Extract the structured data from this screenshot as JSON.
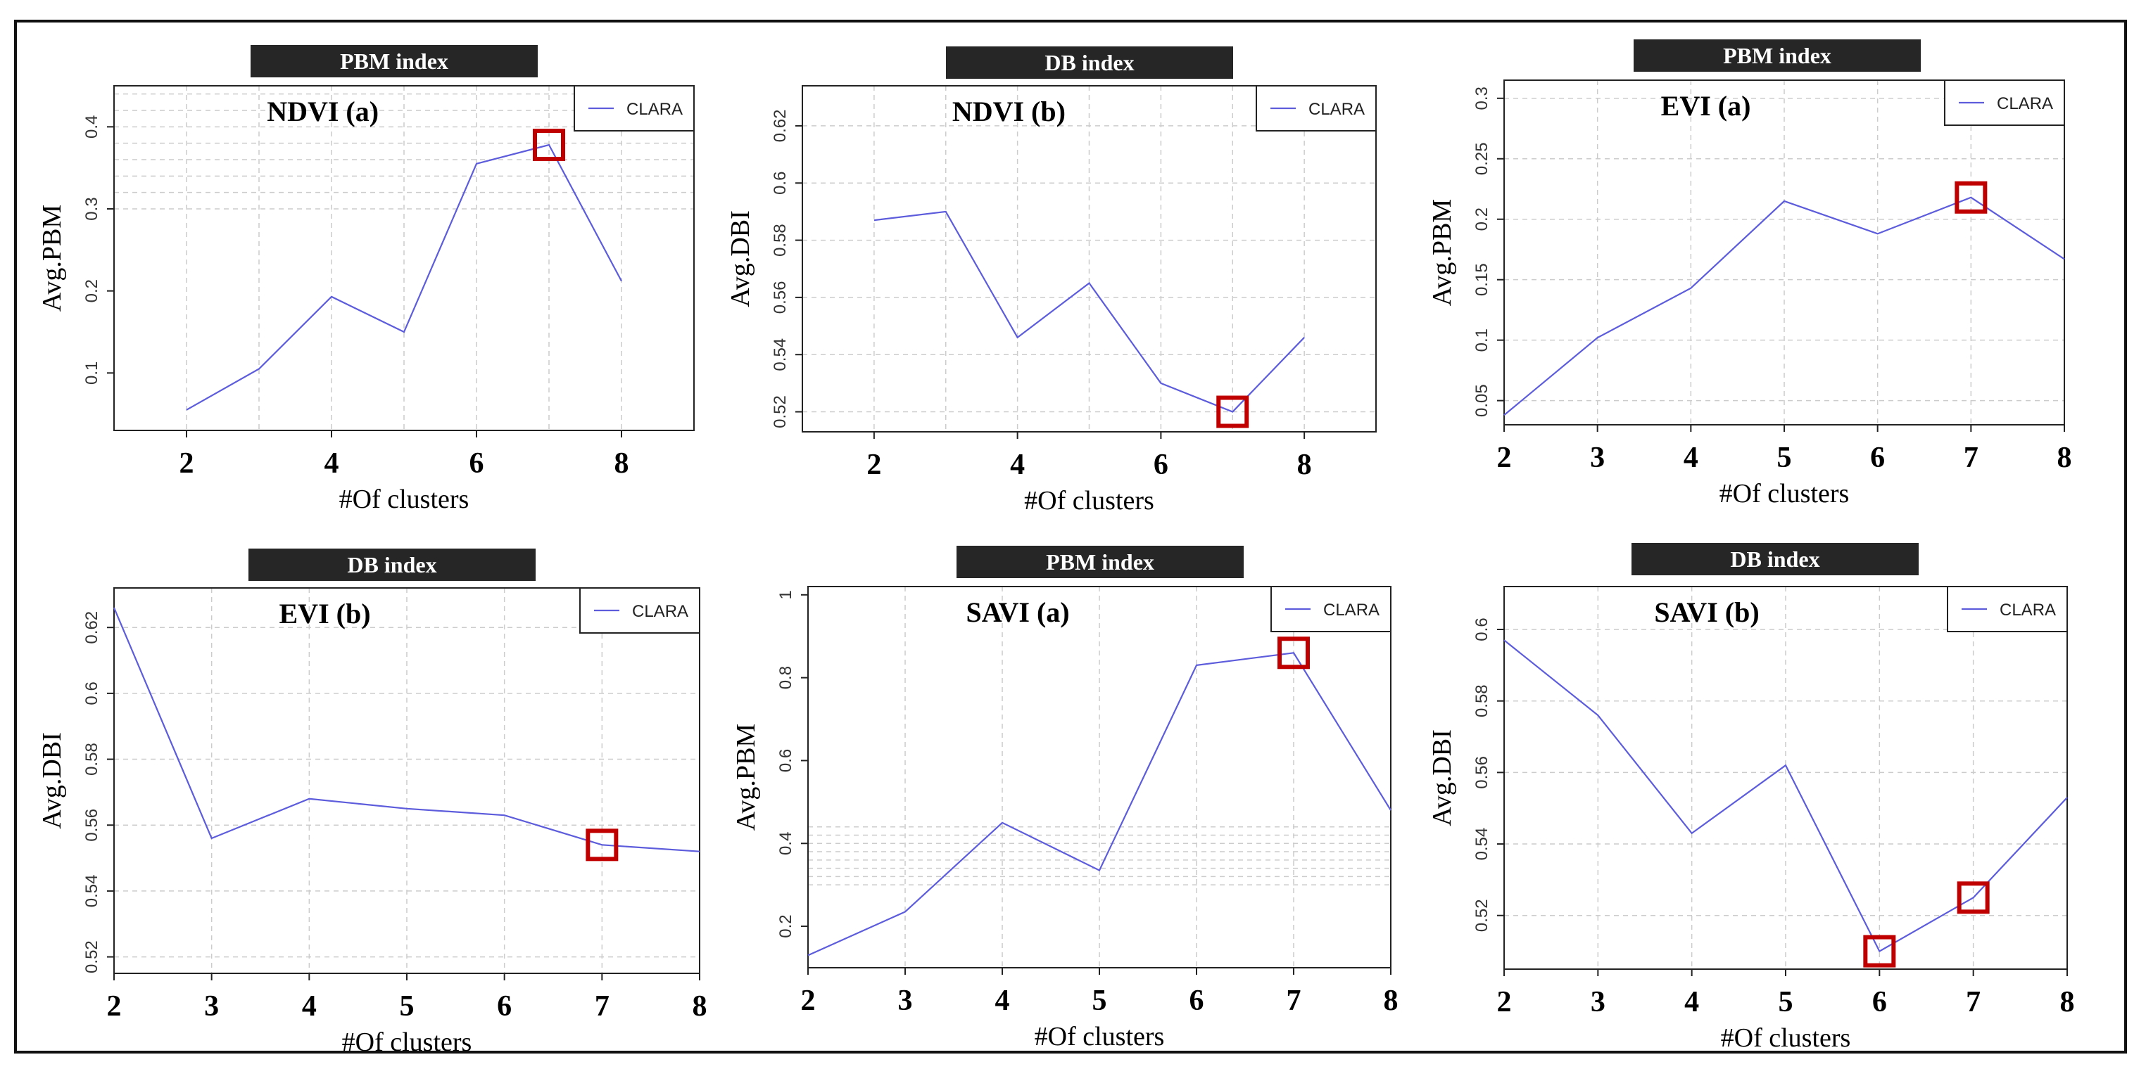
{
  "colors": {
    "line": "#5c5cdc",
    "marker": "#c00000",
    "header_bg": "#262626",
    "grid": "#cccccc"
  },
  "chart_data": [
    {
      "id": "p1",
      "type": "line",
      "header": "PBM index",
      "title": "NDVI (a)",
      "xlabel": "#Of clusters",
      "ylabel": "Avg.PBM",
      "xlim": [
        1,
        9
      ],
      "ylim": [
        0.03,
        0.45
      ],
      "xticks": [
        2,
        4,
        6,
        8
      ],
      "yticks": [
        0.1,
        0.2,
        0.3,
        0.4
      ],
      "x_grid": [
        1,
        2,
        3,
        4,
        5,
        6,
        7,
        8,
        9
      ],
      "y_grid": [
        0.3,
        0.32,
        0.34,
        0.36,
        0.38,
        0.4,
        0.42,
        0.44
      ],
      "series": [
        {
          "name": "CLARA",
          "x": [
            2,
            3,
            4,
            5,
            6,
            7,
            8
          ],
          "values": [
            0.055,
            0.105,
            0.193,
            0.15,
            0.355,
            0.378,
            0.212
          ]
        }
      ],
      "legend": "CLARA",
      "highlight_x": [
        7
      ]
    },
    {
      "id": "p2",
      "type": "line",
      "header": "DB index",
      "title": "NDVI (b)",
      "xlabel": "#Of clusters",
      "ylabel": "Avg.DBI",
      "xlim": [
        1,
        9
      ],
      "ylim": [
        0.513,
        0.634
      ],
      "xticks": [
        2,
        4,
        6,
        8
      ],
      "yticks": [
        0.52,
        0.54,
        0.56,
        0.58,
        0.6,
        0.62
      ],
      "x_grid": [
        1,
        2,
        3,
        4,
        5,
        6,
        7,
        8,
        9
      ],
      "y_grid": [
        0.52,
        0.54,
        0.56,
        0.58,
        0.6,
        0.62
      ],
      "series": [
        {
          "name": "CLARA",
          "x": [
            2,
            3,
            4,
            5,
            6,
            7,
            8
          ],
          "values": [
            0.587,
            0.59,
            0.546,
            0.565,
            0.53,
            0.52,
            0.546
          ]
        }
      ],
      "legend": "CLARA",
      "highlight_x": [
        7
      ]
    },
    {
      "id": "p3",
      "type": "line",
      "header": "PBM index",
      "title": "EVI (a)",
      "xlabel": "#Of clusters",
      "ylabel": "Avg.PBM",
      "xlim": [
        2,
        8
      ],
      "ylim": [
        0.03,
        0.315
      ],
      "xticks": [
        2,
        3,
        4,
        5,
        6,
        7,
        8
      ],
      "yticks": [
        0.05,
        0.1,
        0.15,
        0.2,
        0.25,
        0.3
      ],
      "x_grid": [
        2,
        3,
        4,
        5,
        6,
        7,
        8
      ],
      "y_grid": [
        0.05,
        0.1,
        0.15,
        0.2,
        0.25,
        0.3
      ],
      "series": [
        {
          "name": "CLARA",
          "x": [
            2,
            3,
            4,
            5,
            6,
            7,
            8
          ],
          "values": [
            0.038,
            0.102,
            0.143,
            0.215,
            0.188,
            0.218,
            0.167
          ]
        }
      ],
      "legend": "CLARA",
      "highlight_x": [
        7
      ]
    },
    {
      "id": "p4",
      "type": "line",
      "header": "DB index",
      "title": "EVI (b)",
      "xlabel": "#Of clusters",
      "ylabel": "Avg.DBI",
      "xlim": [
        2,
        8
      ],
      "ylim": [
        0.515,
        0.632
      ],
      "xticks": [
        2,
        3,
        4,
        5,
        6,
        7,
        8
      ],
      "yticks": [
        0.52,
        0.54,
        0.56,
        0.58,
        0.6,
        0.62
      ],
      "x_grid": [
        2,
        3,
        4,
        5,
        6,
        7,
        8
      ],
      "y_grid": [
        0.52,
        0.54,
        0.56,
        0.58,
        0.6,
        0.62
      ],
      "series": [
        {
          "name": "CLARA",
          "x": [
            2,
            3,
            4,
            5,
            6,
            7,
            8
          ],
          "values": [
            0.626,
            0.556,
            0.568,
            0.565,
            0.563,
            0.554,
            0.552
          ]
        }
      ],
      "legend": "CLARA",
      "highlight_x": [
        7
      ]
    },
    {
      "id": "p5",
      "type": "line",
      "header": "PBM index",
      "title": "SAVI (a)",
      "xlabel": "#Of clusters",
      "ylabel": "Avg.PBM",
      "xlim": [
        2,
        8
      ],
      "ylim": [
        0.1,
        1.02
      ],
      "xticks": [
        2,
        3,
        4,
        5,
        6,
        7,
        8
      ],
      "yticks": [
        0.2,
        0.4,
        0.6,
        0.8,
        1.0
      ],
      "x_grid": [
        2,
        3,
        4,
        5,
        6,
        7,
        8
      ],
      "y_grid": [
        0.3,
        0.32,
        0.34,
        0.36,
        0.38,
        0.4,
        0.42,
        0.44
      ],
      "series": [
        {
          "name": "CLARA",
          "x": [
            2,
            3,
            4,
            5,
            6,
            7,
            8
          ],
          "values": [
            0.13,
            0.235,
            0.45,
            0.335,
            0.83,
            0.86,
            0.48
          ]
        }
      ],
      "legend": "CLARA",
      "highlight_x": [
        7
      ]
    },
    {
      "id": "p6",
      "type": "line",
      "header": "DB index",
      "title": "SAVI (b)",
      "xlabel": "#Of clusters",
      "ylabel": "Avg.DBI",
      "xlim": [
        2,
        8
      ],
      "ylim": [
        0.505,
        0.612
      ],
      "xticks": [
        2,
        3,
        4,
        5,
        6,
        7,
        8
      ],
      "yticks": [
        0.52,
        0.54,
        0.56,
        0.58,
        0.6
      ],
      "x_grid": [
        2,
        3,
        4,
        5,
        6,
        7,
        8
      ],
      "y_grid": [
        0.52,
        0.54,
        0.56,
        0.58,
        0.6
      ],
      "series": [
        {
          "name": "CLARA",
          "x": [
            2,
            3,
            4,
            5,
            6,
            7,
            8
          ],
          "values": [
            0.597,
            0.576,
            0.543,
            0.562,
            0.51,
            0.525,
            0.553
          ]
        }
      ],
      "legend": "CLARA",
      "highlight_x": [
        6,
        7
      ]
    }
  ]
}
